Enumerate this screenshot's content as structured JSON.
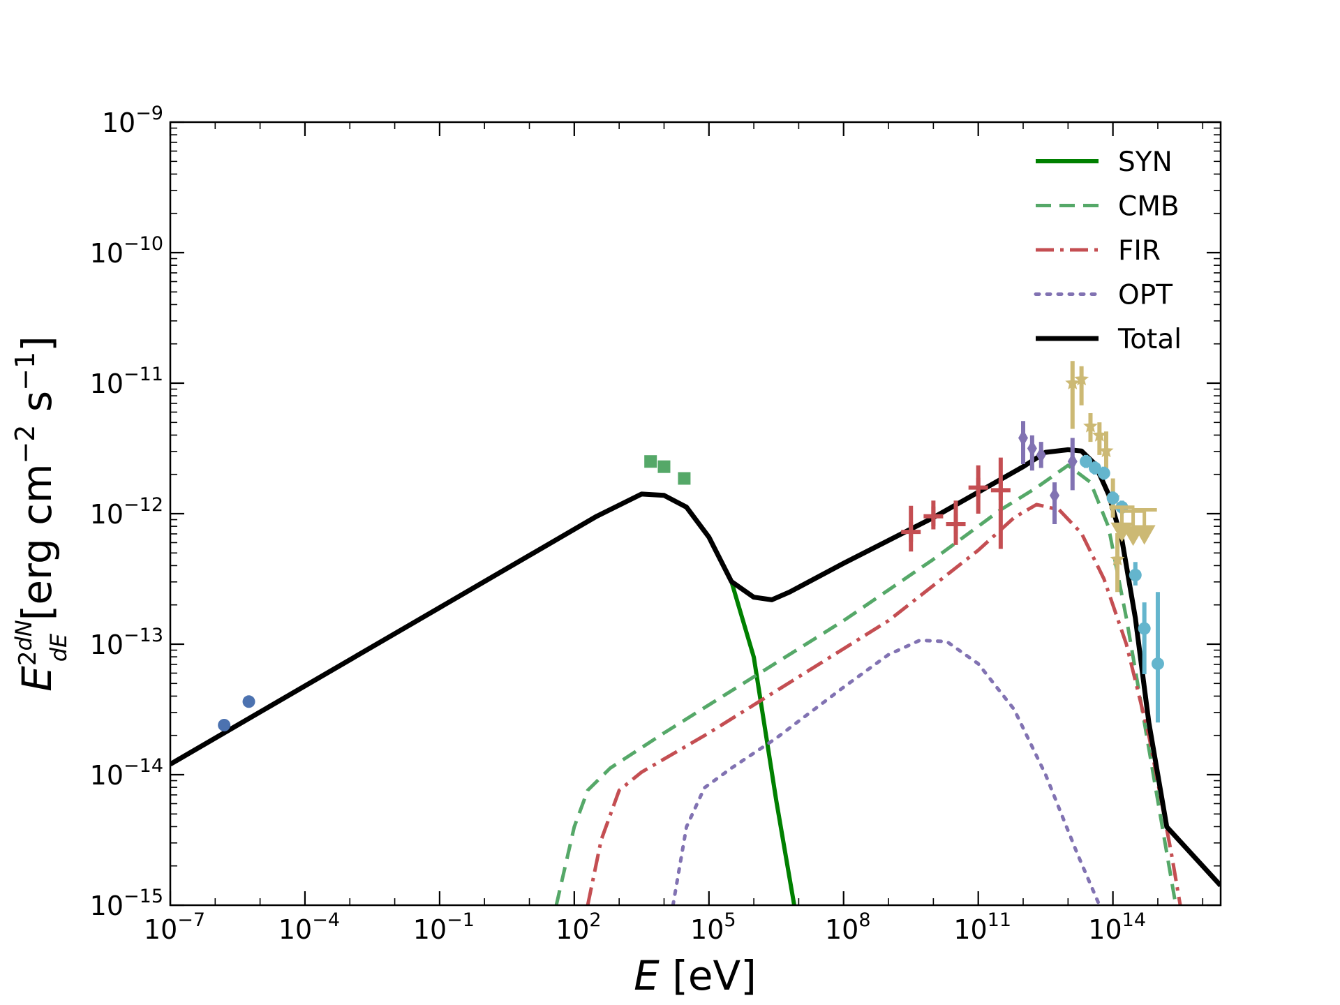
{
  "chart_data": {
    "type": "line",
    "title": "",
    "xlabel": {
      "var": "E",
      "unit": " [eV]"
    },
    "ylabel": {
      "prefix": "E",
      "sup": "2",
      "num": "dN",
      "den": "dE",
      "unit": " [erg cm",
      "unit_sup1": "−2",
      "unit_mid": " s",
      "unit_sup2": "−1",
      "unit_end": "]"
    },
    "xscale": "log",
    "yscale": "log",
    "xlim_log10": [
      -7,
      16.4
    ],
    "ylim_log10": [
      -15,
      -9
    ],
    "x_ticks": [
      {
        "exp": -7,
        "base": "10",
        "sup": "−7"
      },
      {
        "exp": -4,
        "base": "10",
        "sup": "−4"
      },
      {
        "exp": -1,
        "base": "10",
        "sup": "−1"
      },
      {
        "exp": 2,
        "base": "10",
        "sup": "2"
      },
      {
        "exp": 5,
        "base": "10",
        "sup": "5"
      },
      {
        "exp": 8,
        "base": "10",
        "sup": "8"
      },
      {
        "exp": 11,
        "base": "10",
        "sup": "11"
      },
      {
        "exp": 14,
        "base": "10",
        "sup": "14"
      }
    ],
    "y_ticks": [
      {
        "exp": -15,
        "base": "10",
        "sup": "−15"
      },
      {
        "exp": -14,
        "base": "10",
        "sup": "−14"
      },
      {
        "exp": -13,
        "base": "10",
        "sup": "−13"
      },
      {
        "exp": -12,
        "base": "10",
        "sup": "−12"
      },
      {
        "exp": -11,
        "base": "10",
        "sup": "−11"
      },
      {
        "exp": -10,
        "base": "10",
        "sup": "−10"
      },
      {
        "exp": -9,
        "base": "10",
        "sup": "−9"
      }
    ],
    "legend": {
      "position": "top-right"
    },
    "series": [
      {
        "name": "SYN",
        "color": "#008000",
        "dash": "solid",
        "width": 6,
        "points_log10": [
          [
            -7,
            -13.92
          ],
          [
            0,
            -12.52
          ],
          [
            2.5,
            -12.02
          ],
          [
            3.5,
            -11.85
          ],
          [
            4.0,
            -11.86
          ],
          [
            4.5,
            -11.95
          ],
          [
            5.0,
            -12.18
          ],
          [
            5.5,
            -12.52
          ],
          [
            6.0,
            -13.1
          ],
          [
            6.5,
            -14.2
          ],
          [
            6.9,
            -15.0
          ]
        ]
      },
      {
        "name": "CMB",
        "color": "#55a868",
        "dash": "22 12",
        "width": 5,
        "points_log10": [
          [
            1.6,
            -15.0
          ],
          [
            2.0,
            -14.4
          ],
          [
            2.3,
            -14.12
          ],
          [
            2.8,
            -13.95
          ],
          [
            4.0,
            -13.68
          ],
          [
            6.0,
            -13.25
          ],
          [
            8.0,
            -12.82
          ],
          [
            10.0,
            -12.35
          ],
          [
            11.5,
            -11.97
          ],
          [
            12.3,
            -11.8
          ],
          [
            13.0,
            -11.63
          ],
          [
            13.5,
            -11.76
          ],
          [
            13.9,
            -12.1
          ],
          [
            14.3,
            -12.8
          ],
          [
            14.7,
            -13.6
          ],
          [
            15.2,
            -14.6
          ],
          [
            15.4,
            -15.0
          ]
        ]
      },
      {
        "name": "FIR",
        "color": "#c44e52",
        "dash": "26 9 5 9",
        "width": 5,
        "points_log10": [
          [
            2.3,
            -15.0
          ],
          [
            2.6,
            -14.5
          ],
          [
            3.0,
            -14.12
          ],
          [
            3.5,
            -13.98
          ],
          [
            5.0,
            -13.68
          ],
          [
            7.0,
            -13.25
          ],
          [
            9.0,
            -12.82
          ],
          [
            11.0,
            -12.28
          ],
          [
            11.8,
            -12.03
          ],
          [
            12.3,
            -11.93
          ],
          [
            12.8,
            -11.97
          ],
          [
            13.3,
            -12.15
          ],
          [
            13.8,
            -12.5
          ],
          [
            14.3,
            -13.0
          ],
          [
            14.8,
            -13.7
          ],
          [
            15.3,
            -14.6
          ],
          [
            15.5,
            -15.0
          ]
        ]
      },
      {
        "name": "OPT",
        "color": "#8172b2",
        "dash": "5 11",
        "width": 5,
        "points_log10": [
          [
            4.2,
            -15.0
          ],
          [
            4.5,
            -14.4
          ],
          [
            4.9,
            -14.1
          ],
          [
            5.5,
            -13.95
          ],
          [
            6.5,
            -13.72
          ],
          [
            8.0,
            -13.33
          ],
          [
            9.0,
            -13.08
          ],
          [
            9.7,
            -12.97
          ],
          [
            10.3,
            -12.98
          ],
          [
            11.0,
            -13.15
          ],
          [
            11.8,
            -13.5
          ],
          [
            12.5,
            -14.0
          ],
          [
            13.2,
            -14.6
          ],
          [
            13.7,
            -15.0
          ]
        ]
      },
      {
        "name": "Total",
        "color": "#000000",
        "dash": "solid",
        "width": 7,
        "points_log10": [
          [
            -7,
            -13.92
          ],
          [
            0,
            -12.52
          ],
          [
            2.5,
            -12.02
          ],
          [
            3.5,
            -11.85
          ],
          [
            4.0,
            -11.86
          ],
          [
            4.5,
            -11.95
          ],
          [
            5.0,
            -12.18
          ],
          [
            5.5,
            -12.52
          ],
          [
            6.0,
            -12.64
          ],
          [
            6.4,
            -12.66
          ],
          [
            6.8,
            -12.6
          ],
          [
            8.0,
            -12.38
          ],
          [
            10.0,
            -12.03
          ],
          [
            12.0,
            -11.64
          ],
          [
            12.5,
            -11.53
          ],
          [
            13.0,
            -11.51
          ],
          [
            13.3,
            -11.52
          ],
          [
            13.6,
            -11.62
          ],
          [
            13.9,
            -11.85
          ],
          [
            14.2,
            -12.2
          ],
          [
            14.5,
            -12.8
          ],
          [
            14.8,
            -13.6
          ],
          [
            15.2,
            -14.4
          ],
          [
            16.4,
            -14.85
          ]
        ]
      }
    ],
    "datasets": [
      {
        "marker": "circle",
        "color": "#4c72b0",
        "size": 9,
        "points_log10": [
          [
            -5.8,
            -13.62,
            0,
            0
          ],
          [
            -5.25,
            -13.44,
            0.04,
            0.04
          ]
        ]
      },
      {
        "marker": "square",
        "color": "#55a868",
        "size": 9,
        "points_log10": [
          [
            3.7,
            -11.6,
            0,
            0
          ],
          [
            4.0,
            -11.64,
            0,
            0
          ],
          [
            4.45,
            -11.73,
            0,
            0
          ]
        ]
      },
      {
        "marker": "plus",
        "color": "#c44e52",
        "size": 14,
        "points_log10": [
          [
            9.5,
            -12.14,
            0.15,
            0.2
          ],
          [
            10.0,
            -12.02,
            0.1,
            0.12
          ],
          [
            10.5,
            -12.08,
            0.16,
            0.18
          ],
          [
            11.0,
            -11.8,
            0.2,
            0.17
          ],
          [
            11.5,
            -11.82,
            0.45,
            0.25
          ]
        ]
      },
      {
        "marker": "diamond",
        "color": "#8172b2",
        "size": 9,
        "points_log10": [
          [
            12.0,
            -11.42,
            0.2,
            0.13
          ],
          [
            12.2,
            -11.5,
            0.17,
            0.1
          ],
          [
            12.4,
            -11.55,
            0.1,
            0.1
          ],
          [
            12.7,
            -11.86,
            0.22,
            0.1
          ],
          [
            13.1,
            -11.6,
            0.22,
            0.18
          ]
        ]
      },
      {
        "marker": "star",
        "color": "#ccb974",
        "size": 11,
        "points_log10": [
          [
            13.1,
            -11.0,
            0.35,
            0.17
          ],
          [
            13.3,
            -10.97,
            0.2,
            0.1
          ],
          [
            13.5,
            -11.33,
            0.12,
            0.1
          ],
          [
            13.7,
            -11.4,
            0.15,
            0.1
          ],
          [
            13.85,
            -11.52,
            0.2,
            0.15
          ],
          [
            14.0,
            -11.88,
            0.15,
            0.15
          ],
          [
            14.1,
            -12.35,
            0.25,
            0.2
          ]
        ]
      },
      {
        "marker": "circle",
        "color": "#64b5cd",
        "size": 9,
        "points_log10": [
          [
            13.4,
            -11.6,
            0.05,
            0.05
          ],
          [
            13.6,
            -11.65,
            0.05,
            0.05
          ],
          [
            13.8,
            -11.69,
            0.05,
            0.05
          ],
          [
            14.0,
            -11.88,
            0.05,
            0.05
          ],
          [
            14.2,
            -11.95,
            0.05,
            0.05
          ],
          [
            14.5,
            -12.47,
            0.08,
            0.1
          ],
          [
            14.7,
            -12.88,
            0.35,
            0.2
          ],
          [
            15.0,
            -13.15,
            0.45,
            0.55
          ]
        ]
      },
      {
        "marker": "ul",
        "color": "#ccb974",
        "size": 14,
        "points_log10": [
          [
            14.2,
            -12.1
          ],
          [
            14.45,
            -12.13
          ],
          [
            14.7,
            -12.12
          ]
        ]
      }
    ]
  }
}
